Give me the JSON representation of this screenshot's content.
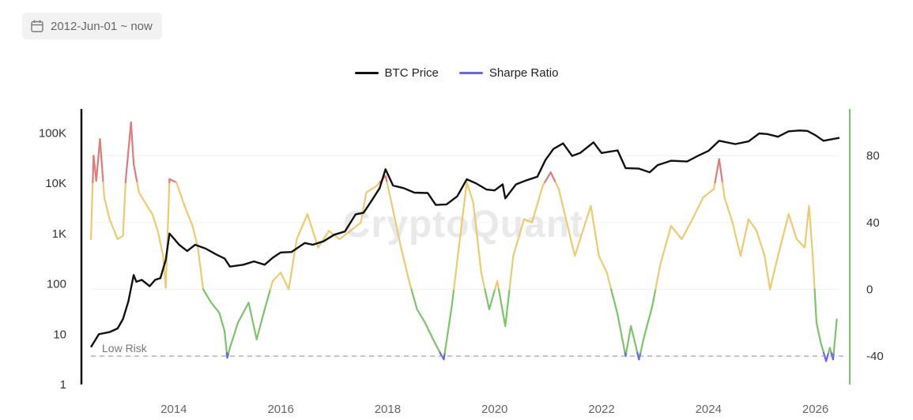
{
  "date_range": {
    "label": "2012-Jun-01 ~ now",
    "icon": "calendar-icon"
  },
  "legend": [
    {
      "name": "BTC Price",
      "color": "#111111"
    },
    {
      "name": "Sharpe Ratio",
      "color": "#6a62f0"
    }
  ],
  "watermark": "CryptoQuant",
  "chart_data": {
    "type": "line",
    "title": "",
    "left_axis": {
      "scale": "log",
      "range": [
        1,
        300000
      ],
      "ticks": [
        1,
        10,
        100,
        1000,
        10000,
        100000
      ],
      "tick_labels": [
        "1",
        "10",
        "100",
        "1K",
        "10K",
        "100K"
      ]
    },
    "right_axis": {
      "range": [
        -57,
        108
      ],
      "ticks": [
        -40,
        0,
        40,
        80
      ],
      "tick_labels": [
        "-40",
        "0",
        "40",
        "80"
      ]
    },
    "x_axis": {
      "range": [
        2012.45,
        2026.45
      ],
      "ticks": [
        2014,
        2016,
        2018,
        2020,
        2022,
        2024,
        2026
      ],
      "tick_labels": [
        "2014",
        "2016",
        "2018",
        "2020",
        "2022",
        "2024",
        "2026"
      ]
    },
    "annotations": [
      {
        "text": "Low Risk",
        "value": -40,
        "style": "dashed"
      }
    ],
    "color_zones": [
      {
        "name": "high",
        "min": 64,
        "color": "#e07a7a"
      },
      {
        "name": "neutral",
        "min": 0,
        "color": "#ebcb6e"
      },
      {
        "name": "low",
        "min": -38,
        "color": "#7cc46a"
      },
      {
        "name": "extreme-low",
        "min": -200,
        "color": "#6a62f0"
      }
    ],
    "series": [
      {
        "name": "BTC Price",
        "axis": "left",
        "color": "#111111",
        "points": [
          [
            2012.45,
            5.5
          ],
          [
            2012.6,
            10
          ],
          [
            2012.8,
            11
          ],
          [
            2012.95,
            13
          ],
          [
            2013.05,
            20
          ],
          [
            2013.15,
            45
          ],
          [
            2013.25,
            150
          ],
          [
            2013.3,
            110
          ],
          [
            2013.4,
            120
          ],
          [
            2013.55,
            90
          ],
          [
            2013.65,
            120
          ],
          [
            2013.75,
            130
          ],
          [
            2013.85,
            300
          ],
          [
            2013.92,
            1000
          ],
          [
            2014.0,
            800
          ],
          [
            2014.1,
            600
          ],
          [
            2014.25,
            450
          ],
          [
            2014.4,
            600
          ],
          [
            2014.6,
            500
          ],
          [
            2014.8,
            380
          ],
          [
            2014.95,
            320
          ],
          [
            2015.05,
            220
          ],
          [
            2015.3,
            240
          ],
          [
            2015.5,
            280
          ],
          [
            2015.7,
            240
          ],
          [
            2015.85,
            330
          ],
          [
            2016.0,
            420
          ],
          [
            2016.2,
            430
          ],
          [
            2016.45,
            650
          ],
          [
            2016.6,
            600
          ],
          [
            2016.8,
            700
          ],
          [
            2017.0,
            950
          ],
          [
            2017.2,
            1100
          ],
          [
            2017.4,
            2400
          ],
          [
            2017.55,
            2600
          ],
          [
            2017.7,
            4500
          ],
          [
            2017.85,
            8000
          ],
          [
            2017.96,
            19000
          ],
          [
            2018.1,
            9000
          ],
          [
            2018.3,
            8000
          ],
          [
            2018.5,
            6500
          ],
          [
            2018.75,
            6400
          ],
          [
            2018.9,
            3700
          ],
          [
            2019.1,
            3800
          ],
          [
            2019.3,
            5500
          ],
          [
            2019.48,
            12000
          ],
          [
            2019.65,
            10000
          ],
          [
            2019.85,
            7500
          ],
          [
            2020.0,
            7200
          ],
          [
            2020.15,
            9500
          ],
          [
            2020.2,
            5000
          ],
          [
            2020.4,
            9500
          ],
          [
            2020.6,
            11500
          ],
          [
            2020.8,
            13500
          ],
          [
            2020.95,
            29000
          ],
          [
            2021.1,
            48000
          ],
          [
            2021.28,
            62000
          ],
          [
            2021.45,
            35000
          ],
          [
            2021.6,
            40000
          ],
          [
            2021.85,
            65000
          ],
          [
            2022.0,
            40000
          ],
          [
            2022.3,
            45000
          ],
          [
            2022.45,
            20000
          ],
          [
            2022.7,
            19500
          ],
          [
            2022.9,
            16500
          ],
          [
            2023.05,
            23000
          ],
          [
            2023.3,
            28000
          ],
          [
            2023.6,
            27000
          ],
          [
            2023.8,
            35000
          ],
          [
            2024.0,
            44000
          ],
          [
            2024.2,
            70000
          ],
          [
            2024.5,
            60000
          ],
          [
            2024.75,
            68000
          ],
          [
            2024.95,
            98000
          ],
          [
            2025.1,
            95000
          ],
          [
            2025.3,
            84000
          ],
          [
            2025.5,
            108000
          ],
          [
            2025.7,
            112000
          ],
          [
            2025.85,
            110000
          ],
          [
            2026.0,
            90000
          ],
          [
            2026.15,
            70000
          ],
          [
            2026.3,
            75000
          ],
          [
            2026.45,
            80000
          ]
        ]
      },
      {
        "name": "Sharpe Ratio",
        "axis": "right",
        "color": "#6a62f0",
        "points": [
          [
            2012.45,
            30
          ],
          [
            2012.5,
            80
          ],
          [
            2012.55,
            65
          ],
          [
            2012.62,
            90
          ],
          [
            2012.7,
            55
          ],
          [
            2012.8,
            42
          ],
          [
            2012.95,
            30
          ],
          [
            2013.05,
            32
          ],
          [
            2013.1,
            65
          ],
          [
            2013.2,
            100
          ],
          [
            2013.25,
            75
          ],
          [
            2013.35,
            58
          ],
          [
            2013.5,
            50
          ],
          [
            2013.6,
            45
          ],
          [
            2013.7,
            35
          ],
          [
            2013.8,
            20
          ],
          [
            2013.85,
            1
          ],
          [
            2013.92,
            66
          ],
          [
            2014.05,
            64
          ],
          [
            2014.2,
            50
          ],
          [
            2014.35,
            38
          ],
          [
            2014.45,
            25
          ],
          [
            2014.55,
            0
          ],
          [
            2014.7,
            -8
          ],
          [
            2014.85,
            -14
          ],
          [
            2014.95,
            -25
          ],
          [
            2015.0,
            -41
          ],
          [
            2015.05,
            -35
          ],
          [
            2015.2,
            -20
          ],
          [
            2015.4,
            -8
          ],
          [
            2015.55,
            -30
          ],
          [
            2015.7,
            -12
          ],
          [
            2015.85,
            5
          ],
          [
            2016.0,
            10
          ],
          [
            2016.15,
            0
          ],
          [
            2016.3,
            30
          ],
          [
            2016.5,
            45
          ],
          [
            2016.7,
            25
          ],
          [
            2016.9,
            35
          ],
          [
            2017.1,
            30
          ],
          [
            2017.3,
            35
          ],
          [
            2017.5,
            40
          ],
          [
            2017.6,
            58
          ],
          [
            2017.8,
            62
          ],
          [
            2017.96,
            68
          ],
          [
            2018.05,
            55
          ],
          [
            2018.25,
            25
          ],
          [
            2018.4,
            5
          ],
          [
            2018.55,
            -12
          ],
          [
            2018.7,
            -20
          ],
          [
            2018.85,
            -30
          ],
          [
            2018.98,
            -38
          ],
          [
            2019.05,
            -42
          ],
          [
            2019.2,
            -10
          ],
          [
            2019.35,
            30
          ],
          [
            2019.48,
            64
          ],
          [
            2019.6,
            52
          ],
          [
            2019.75,
            10
          ],
          [
            2019.9,
            -12
          ],
          [
            2020.05,
            5
          ],
          [
            2020.2,
            -22
          ],
          [
            2020.35,
            20
          ],
          [
            2020.55,
            42
          ],
          [
            2020.7,
            40
          ],
          [
            2020.9,
            62
          ],
          [
            2021.05,
            70
          ],
          [
            2021.2,
            60
          ],
          [
            2021.35,
            40
          ],
          [
            2021.5,
            20
          ],
          [
            2021.65,
            35
          ],
          [
            2021.8,
            50
          ],
          [
            2021.95,
            20
          ],
          [
            2022.1,
            10
          ],
          [
            2022.3,
            -15
          ],
          [
            2022.45,
            -40
          ],
          [
            2022.55,
            -22
          ],
          [
            2022.7,
            -42
          ],
          [
            2022.8,
            -28
          ],
          [
            2022.95,
            -10
          ],
          [
            2023.1,
            15
          ],
          [
            2023.3,
            38
          ],
          [
            2023.5,
            30
          ],
          [
            2023.7,
            42
          ],
          [
            2023.9,
            55
          ],
          [
            2024.1,
            60
          ],
          [
            2024.2,
            78
          ],
          [
            2024.3,
            55
          ],
          [
            2024.45,
            40
          ],
          [
            2024.6,
            20
          ],
          [
            2024.75,
            42
          ],
          [
            2024.9,
            35
          ],
          [
            2025.05,
            20
          ],
          [
            2025.15,
            0
          ],
          [
            2025.3,
            20
          ],
          [
            2025.5,
            45
          ],
          [
            2025.65,
            30
          ],
          [
            2025.8,
            25
          ],
          [
            2025.88,
            50
          ],
          [
            2025.95,
            20
          ],
          [
            2026.02,
            -20
          ],
          [
            2026.1,
            -32
          ],
          [
            2026.2,
            -43
          ],
          [
            2026.27,
            -35
          ],
          [
            2026.33,
            -42
          ],
          [
            2026.4,
            -18
          ]
        ]
      }
    ]
  }
}
